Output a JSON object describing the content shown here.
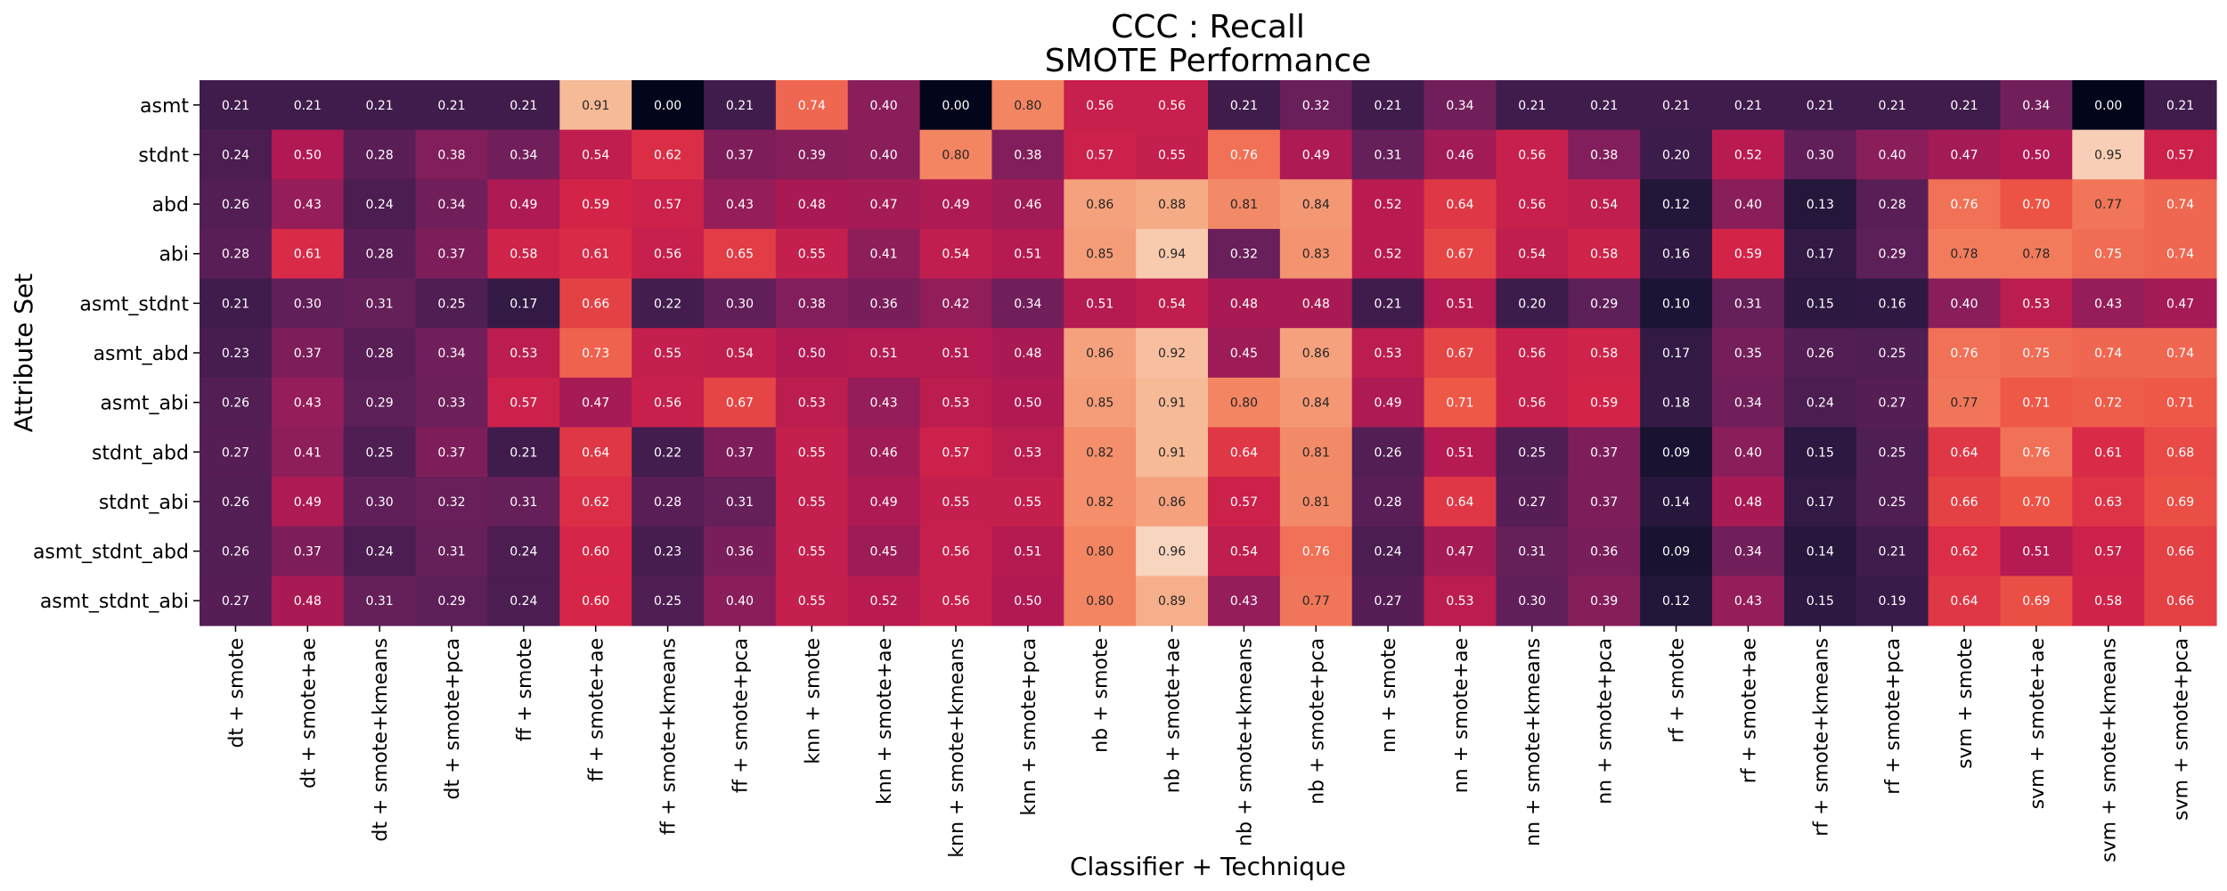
{
  "chart_data": {
    "type": "heatmap",
    "title_lines": [
      "CCC : Recall",
      "SMOTE Performance"
    ],
    "xlabel": "Classifier + Technique",
    "ylabel": "Attribute Set",
    "colormap": "rocket",
    "value_range": [
      0,
      1
    ],
    "rows": [
      "asmt",
      "stdnt",
      "abd",
      "abi",
      "asmt_stdnt",
      "asmt_abd",
      "asmt_abi",
      "stdnt_abd",
      "stdnt_abi",
      "asmt_stdnt_abd",
      "asmt_stdnt_abi"
    ],
    "columns": [
      "dt + smote",
      "dt + smote+ae",
      "dt + smote+kmeans",
      "dt + smote+pca",
      "ff + smote",
      "ff + smote+ae",
      "ff + smote+kmeans",
      "ff + smote+pca",
      "knn + smote",
      "knn + smote+ae",
      "knn + smote+kmeans",
      "knn + smote+pca",
      "nb + smote",
      "nb + smote+ae",
      "nb + smote+kmeans",
      "nb + smote+pca",
      "nn + smote",
      "nn + smote+ae",
      "nn + smote+kmeans",
      "nn + smote+pca",
      "rf + smote",
      "rf + smote+ae",
      "rf + smote+kmeans",
      "rf + smote+pca",
      "svm + smote",
      "svm + smote+ae",
      "svm + smote+kmeans",
      "svm + smote+pca"
    ],
    "values": [
      [
        "0.21",
        "0.21",
        "0.21",
        "0.21",
        "0.21",
        "0.91",
        "0.00",
        "0.21",
        "0.74",
        "0.40",
        "0.00",
        "0.80",
        "0.56",
        "0.56",
        "0.21",
        "0.32",
        "0.21",
        "0.34",
        "0.21",
        "0.21",
        "0.21",
        "0.21",
        "0.21",
        "0.21",
        "0.21",
        "0.34",
        "0.00",
        "0.21"
      ],
      [
        "0.24",
        "0.50",
        "0.28",
        "0.38",
        "0.34",
        "0.54",
        "0.62",
        "0.37",
        "0.39",
        "0.40",
        "0.80",
        "0.38",
        "0.57",
        "0.55",
        "0.76",
        "0.49",
        "0.31",
        "0.46",
        "0.56",
        "0.38",
        "0.20",
        "0.52",
        "0.30",
        "0.40",
        "0.47",
        "0.50",
        "0.95",
        "0.57"
      ],
      [
        "0.26",
        "0.43",
        "0.24",
        "0.34",
        "0.49",
        "0.59",
        "0.57",
        "0.43",
        "0.48",
        "0.47",
        "0.49",
        "0.46",
        "0.86",
        "0.88",
        "0.81",
        "0.84",
        "0.52",
        "0.64",
        "0.56",
        "0.54",
        "0.12",
        "0.40",
        "0.13",
        "0.28",
        "0.76",
        "0.70",
        "0.77",
        "0.74"
      ],
      [
        "0.28",
        "0.61",
        "0.28",
        "0.37",
        "0.58",
        "0.61",
        "0.56",
        "0.65",
        "0.55",
        "0.41",
        "0.54",
        "0.51",
        "0.85",
        "0.94",
        "0.32",
        "0.83",
        "0.52",
        "0.67",
        "0.54",
        "0.58",
        "0.16",
        "0.59",
        "0.17",
        "0.29",
        "0.78",
        "0.78",
        "0.75",
        "0.74"
      ],
      [
        "0.21",
        "0.30",
        "0.31",
        "0.25",
        "0.17",
        "0.66",
        "0.22",
        "0.30",
        "0.38",
        "0.36",
        "0.42",
        "0.34",
        "0.51",
        "0.54",
        "0.48",
        "0.48",
        "0.21",
        "0.51",
        "0.20",
        "0.29",
        "0.10",
        "0.31",
        "0.15",
        "0.16",
        "0.40",
        "0.53",
        "0.43",
        "0.47"
      ],
      [
        "0.23",
        "0.37",
        "0.28",
        "0.34",
        "0.53",
        "0.73",
        "0.55",
        "0.54",
        "0.50",
        "0.51",
        "0.51",
        "0.48",
        "0.86",
        "0.92",
        "0.45",
        "0.86",
        "0.53",
        "0.67",
        "0.56",
        "0.58",
        "0.17",
        "0.35",
        "0.26",
        "0.25",
        "0.76",
        "0.75",
        "0.74",
        "0.74"
      ],
      [
        "0.26",
        "0.43",
        "0.29",
        "0.33",
        "0.57",
        "0.47",
        "0.56",
        "0.67",
        "0.53",
        "0.43",
        "0.53",
        "0.50",
        "0.85",
        "0.91",
        "0.80",
        "0.84",
        "0.49",
        "0.71",
        "0.56",
        "0.59",
        "0.18",
        "0.34",
        "0.24",
        "0.27",
        "0.77",
        "0.71",
        "0.72",
        "0.71"
      ],
      [
        "0.27",
        "0.41",
        "0.25",
        "0.37",
        "0.21",
        "0.64",
        "0.22",
        "0.37",
        "0.55",
        "0.46",
        "0.57",
        "0.53",
        "0.82",
        "0.91",
        "0.64",
        "0.81",
        "0.26",
        "0.51",
        "0.25",
        "0.37",
        "0.09",
        "0.40",
        "0.15",
        "0.25",
        "0.64",
        "0.76",
        "0.61",
        "0.68"
      ],
      [
        "0.26",
        "0.49",
        "0.30",
        "0.32",
        "0.31",
        "0.62",
        "0.28",
        "0.31",
        "0.55",
        "0.49",
        "0.55",
        "0.55",
        "0.82",
        "0.86",
        "0.57",
        "0.81",
        "0.28",
        "0.64",
        "0.27",
        "0.37",
        "0.14",
        "0.48",
        "0.17",
        "0.25",
        "0.66",
        "0.70",
        "0.63",
        "0.69"
      ],
      [
        "0.26",
        "0.37",
        "0.24",
        "0.31",
        "0.24",
        "0.60",
        "0.23",
        "0.36",
        "0.55",
        "0.45",
        "0.56",
        "0.51",
        "0.80",
        "0.96",
        "0.54",
        "0.76",
        "0.24",
        "0.47",
        "0.31",
        "0.36",
        "0.09",
        "0.34",
        "0.14",
        "0.21",
        "0.62",
        "0.51",
        "0.57",
        "0.66"
      ],
      [
        "0.27",
        "0.48",
        "0.31",
        "0.29",
        "0.24",
        "0.60",
        "0.25",
        "0.40",
        "0.55",
        "0.52",
        "0.56",
        "0.50",
        "0.80",
        "0.89",
        "0.43",
        "0.77",
        "0.27",
        "0.53",
        "0.30",
        "0.39",
        "0.12",
        "0.43",
        "0.15",
        "0.19",
        "0.64",
        "0.69",
        "0.58",
        "0.66"
      ]
    ]
  }
}
